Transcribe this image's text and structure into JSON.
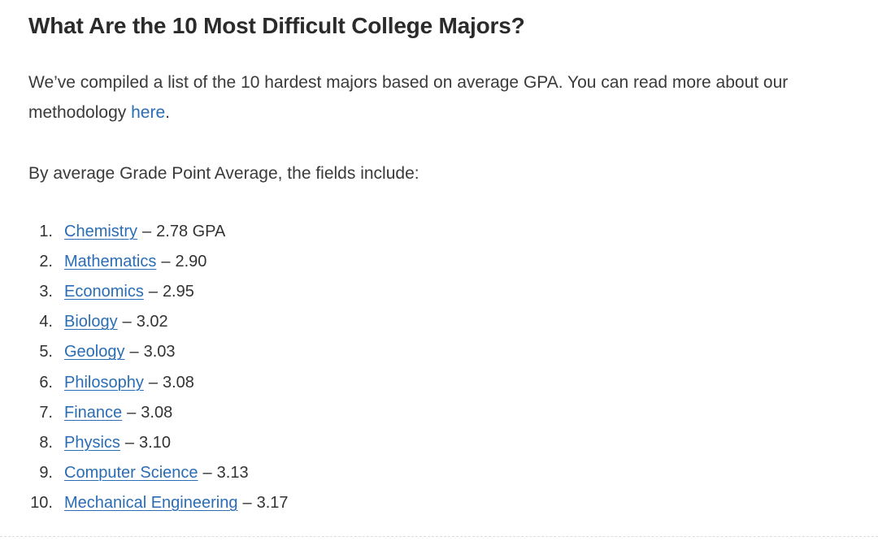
{
  "article": {
    "title": "What Are the 10 Most Difficult College Majors?",
    "intro_text": "We’ve compiled a list of the 10 hardest majors based on average GPA. You can read more about our methodology ",
    "intro_link": "here",
    "intro_end": ".",
    "lead": "By average Grade Point Average, the fields include:",
    "separator": "–",
    "majors": [
      {
        "num": "1.",
        "name": "Chemistry",
        "value": "2.78 GPA"
      },
      {
        "num": "2.",
        "name": "Mathematics",
        "value": "2.90"
      },
      {
        "num": "3.",
        "name": "Economics",
        "value": "2.95"
      },
      {
        "num": "4.",
        "name": "Biology",
        "value": "3.02"
      },
      {
        "num": "5.",
        "name": "Geology",
        "value": "3.03"
      },
      {
        "num": "6.",
        "name": "Philosophy",
        "value": "3.08"
      },
      {
        "num": "7.",
        "name": "Finance",
        "value": "3.08"
      },
      {
        "num": "8.",
        "name": "Physics",
        "value": "3.10"
      },
      {
        "num": "9.",
        "name": "Computer Science",
        "value": "3.13"
      },
      {
        "num": "10.",
        "name": "Mechanical Engineering",
        "value": "3.17"
      }
    ]
  },
  "colors": {
    "link": "#2a6db5",
    "heading": "#2b2b2b",
    "text": "#3a3a3a"
  }
}
